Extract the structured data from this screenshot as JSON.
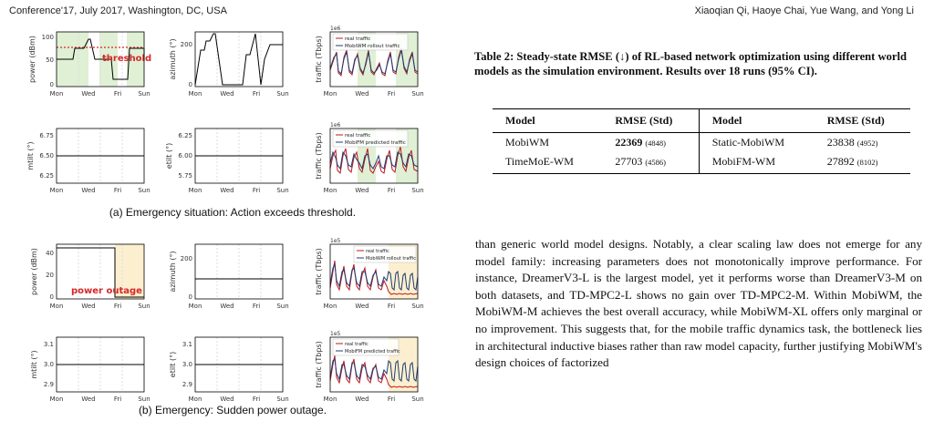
{
  "header": {
    "left": "Conference'17, July 2017, Washington, DC, USA",
    "right": "Xiaoqian Qi, Haoye Chai, Yue Wang, and Yong Li"
  },
  "days": [
    "Mon",
    "Wed",
    "Fri",
    "Sun"
  ],
  "figure_a": {
    "caption": "(a) Emergency situation: Action exceeds threshold.",
    "annotation": "threshold",
    "panels": {
      "power": {
        "ylabel": "power (dBm)",
        "yticks": [
          "100",
          "50",
          "0"
        ]
      },
      "azimuth": {
        "ylabel": "azimuth (°)",
        "yticks": [
          "200",
          "0"
        ]
      },
      "traffic_top": {
        "ylabel": "traffic (Tbps)",
        "scale": "1e6",
        "legend": [
          "real traffic",
          "MobiWM rollout traffic"
        ]
      },
      "mtilt": {
        "ylabel": "mtilt (°)",
        "yticks": [
          "6.75",
          "6.50",
          "6.25"
        ]
      },
      "etilt": {
        "ylabel": "etilt (°)",
        "yticks": [
          "6.25",
          "6.00",
          "5.75"
        ]
      },
      "traffic_bottom": {
        "ylabel": "traffic (Tbps)",
        "scale": "1e6",
        "legend": [
          "real traffic",
          "MobiFM predicted traffic"
        ]
      }
    }
  },
  "figure_b": {
    "caption": "(b) Emergency: Sudden power outage.",
    "annotation": "power outage",
    "panels": {
      "power": {
        "ylabel": "power (dBm)",
        "yticks": [
          "40",
          "20",
          "0"
        ]
      },
      "azimuth": {
        "ylabel": "azimuth (°)",
        "yticks": [
          "200",
          "0"
        ]
      },
      "traffic_top": {
        "ylabel": "traffic (Tbps)",
        "scale": "1e5",
        "legend": [
          "real traffic",
          "MobiWM rollout traffic"
        ]
      },
      "mtilt": {
        "ylabel": "mtilt (°)",
        "yticks": [
          "3.1",
          "3.0",
          "2.9"
        ]
      },
      "etilt": {
        "ylabel": "etilt (°)",
        "yticks": [
          "3.1",
          "3.0",
          "2.9"
        ]
      },
      "traffic_bottom": {
        "ylabel": "traffic (Tbps)",
        "scale": "1e5",
        "legend": [
          "real traffic",
          "MobiFM predicted traffic"
        ]
      }
    }
  },
  "table": {
    "caption": "Table 2: Steady-state RMSE (↓) of RL-based network optimization using different world models as the simulation environment. Results over 18 runs (95% CI).",
    "headers": [
      "Model",
      "RMSE (Std)",
      "Model",
      "RMSE (Std)"
    ],
    "rows": [
      {
        "m1": "MobiWM",
        "v1": "22369",
        "s1": "(4848)",
        "m2": "Static-MobiWM",
        "v2": "23838",
        "s2": "(4952)"
      },
      {
        "m1": "TimeMoE-WM",
        "v1": "27703",
        "s1": "(4586)",
        "m2": "MobiFM-WM",
        "v2": "27892",
        "s2": "(8102)"
      }
    ]
  },
  "body_text": "than generic world model designs. Notably, a clear scaling law does not emerge for any model family: increasing parameters does not monotonically improve performance. For instance, DreamerV3-L is the largest model, yet it performs worse than DreamerV3-M on both datasets, and TD-MPC2-L shows no gain over TD-MPC2-M. Within MobiWM, the MobiWM-M achieves the best overall accuracy, while MobiWM-XL offers only marginal or no improvement. This suggests that, for the mobile traffic dynamics task, the bottleneck lies in architectural inductive biases rather than raw model capacity, further justifying MobiWM's design choices of factorized",
  "colors": {
    "real": "#c0171b",
    "predicted": "#1d3b73",
    "threshold": "#d62728",
    "green_shade": "#dff0d5",
    "yellow_shade": "#fbefcf"
  }
}
